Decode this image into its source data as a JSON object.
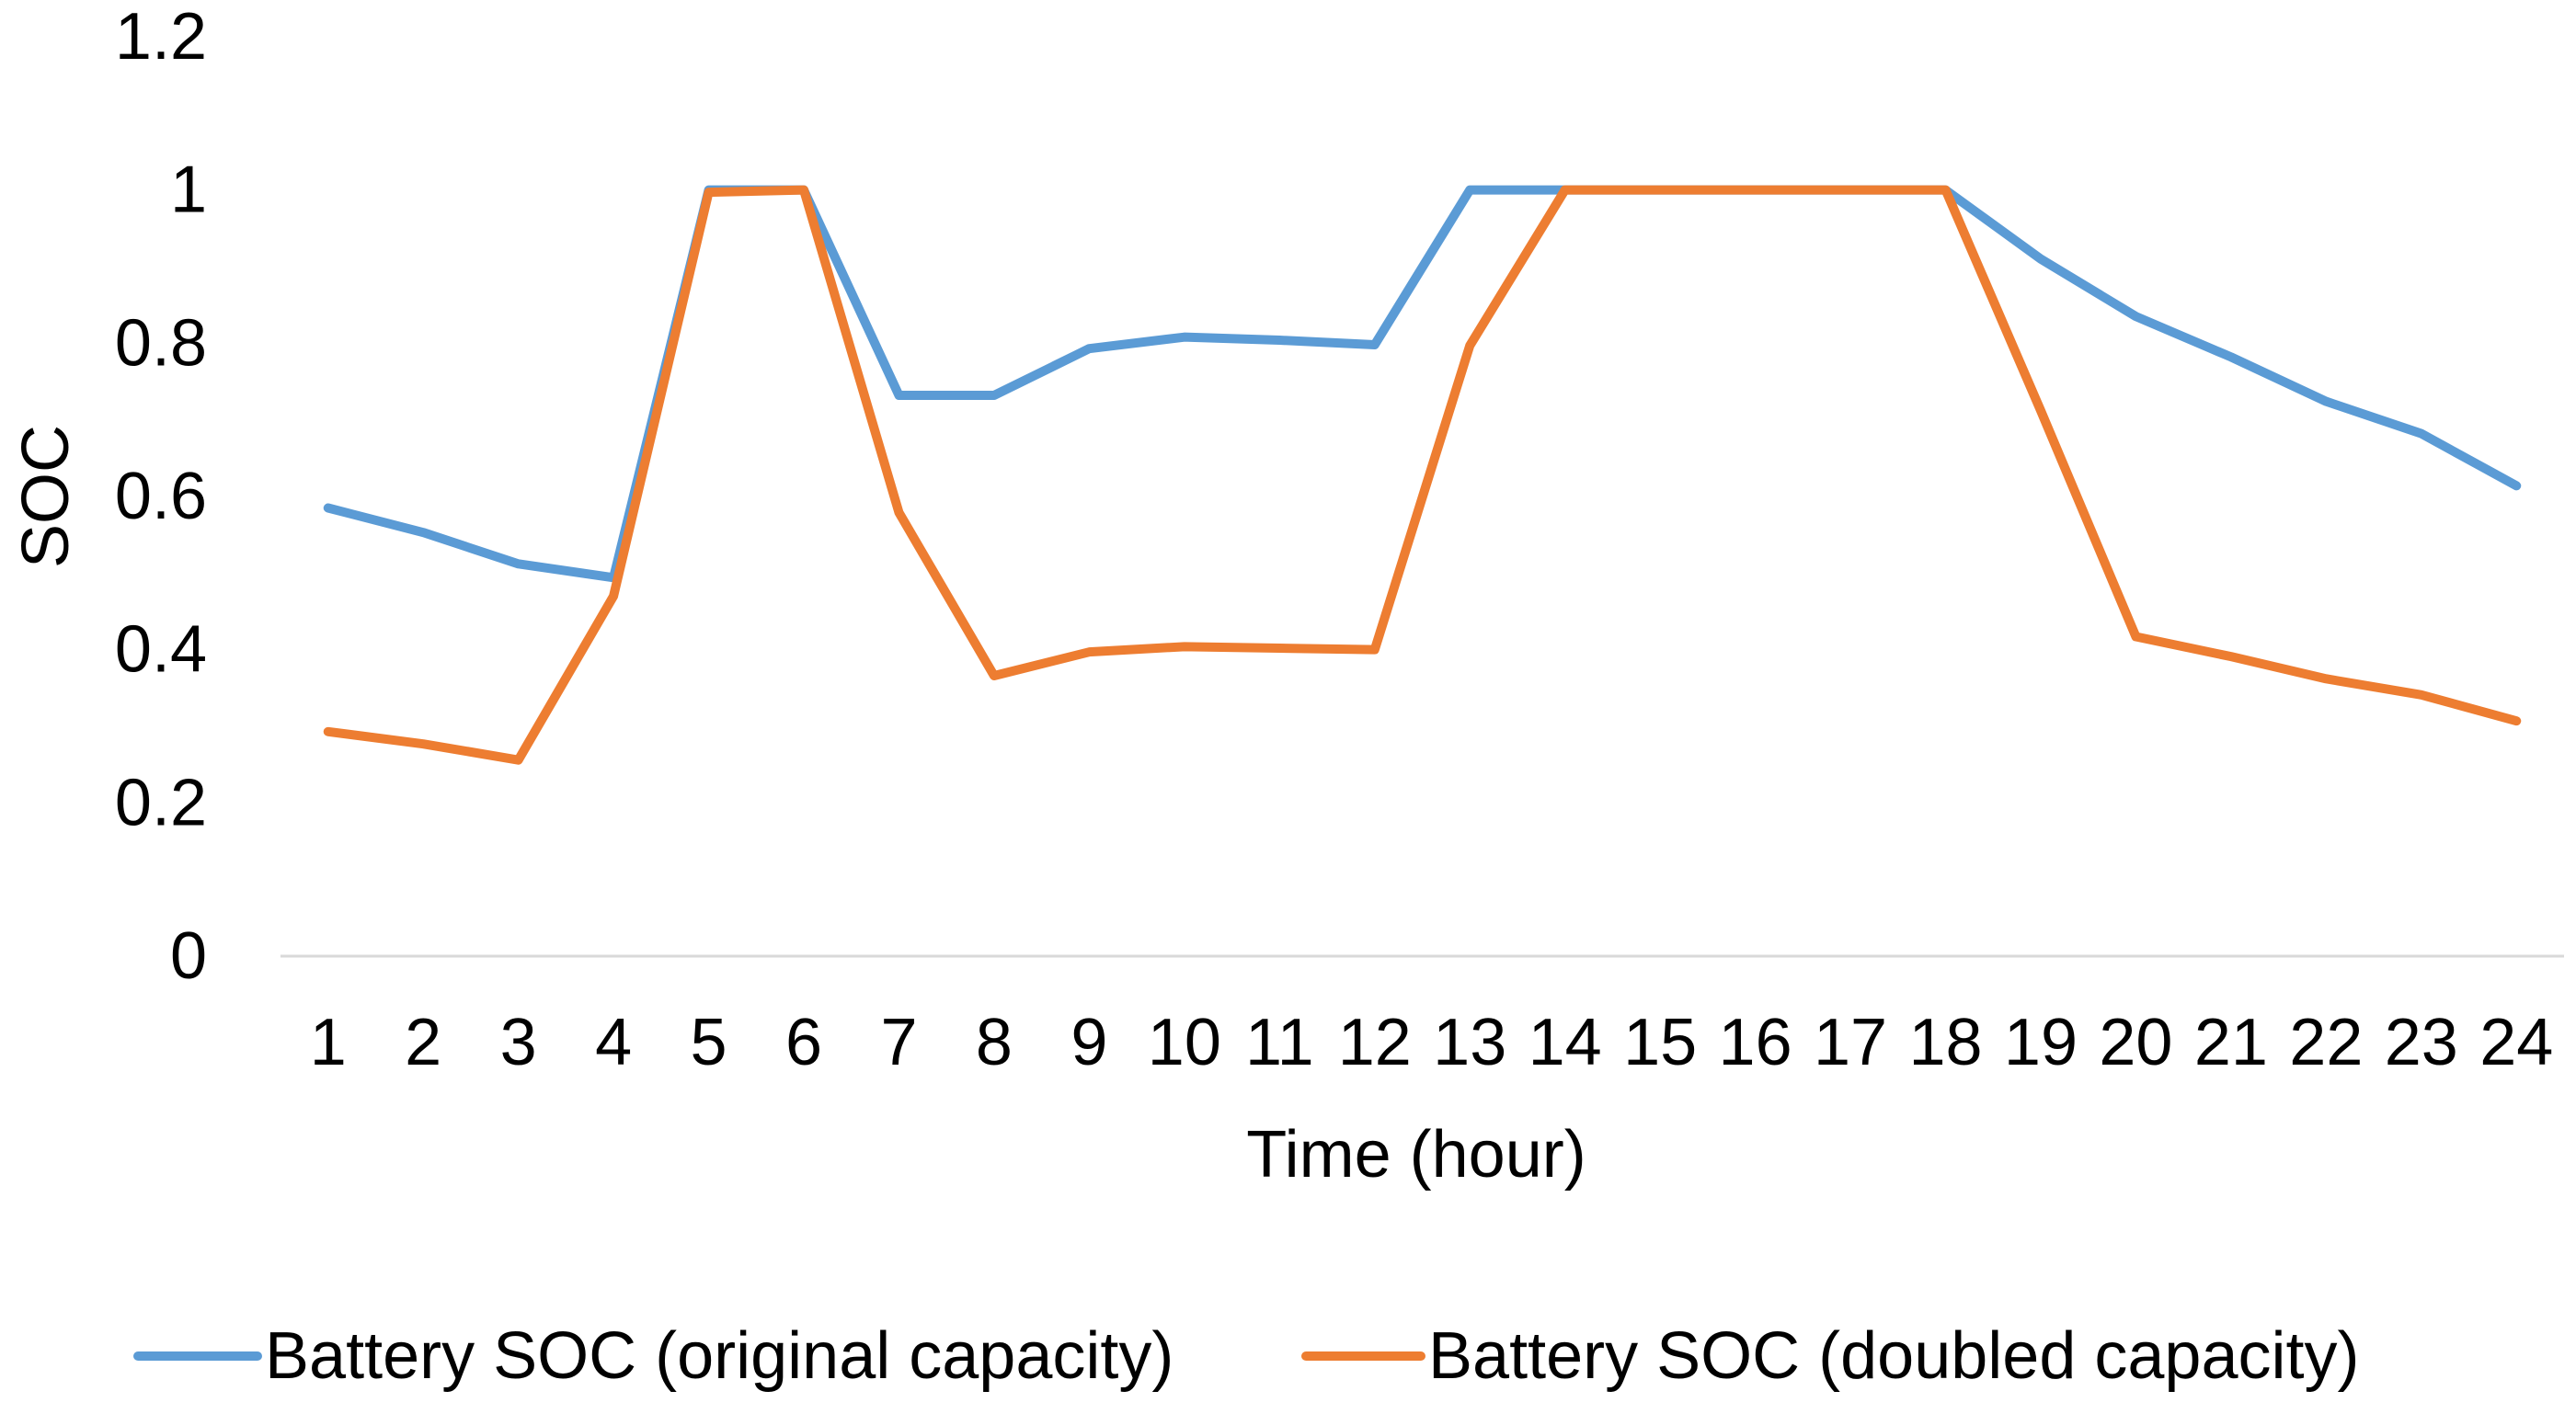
{
  "chart_data": {
    "type": "line",
    "title": "",
    "xlabel": "Time (hour)",
    "ylabel": "SOC",
    "x": [
      "1",
      "2",
      "3",
      "4",
      "5",
      "6",
      "7",
      "8",
      "9",
      "10",
      "11",
      "12",
      "13",
      "14",
      "15",
      "16",
      "17",
      "18",
      "19",
      "20",
      "21",
      "22",
      "23",
      "24"
    ],
    "ylim": [
      0,
      1.2
    ],
    "yticks": [
      "0",
      "0.2",
      "0.4",
      "0.6",
      "0.8",
      "1",
      "1.2"
    ],
    "grid": false,
    "legend_position": "bottom",
    "series": [
      {
        "name": "Battery SOC (original capacity)",
        "color": "#5B9BD5",
        "values": [
          0.585,
          0.553,
          0.512,
          0.494,
          1.0,
          1.0,
          0.732,
          0.732,
          0.793,
          0.808,
          0.804,
          0.798,
          1.0,
          1.0,
          1.0,
          1.0,
          1.0,
          1.0,
          0.91,
          0.835,
          0.782,
          0.724,
          0.682,
          0.614
        ]
      },
      {
        "name": "Battery SOC (doubled capacity)",
        "color": "#ED7D31",
        "values": [
          0.293,
          0.277,
          0.256,
          0.47,
          0.997,
          1.0,
          0.579,
          0.366,
          0.397,
          0.404,
          0.402,
          0.4,
          0.797,
          1.0,
          1.0,
          1.0,
          1.0,
          1.0,
          0.712,
          0.417,
          0.391,
          0.362,
          0.341,
          0.307
        ]
      }
    ]
  }
}
